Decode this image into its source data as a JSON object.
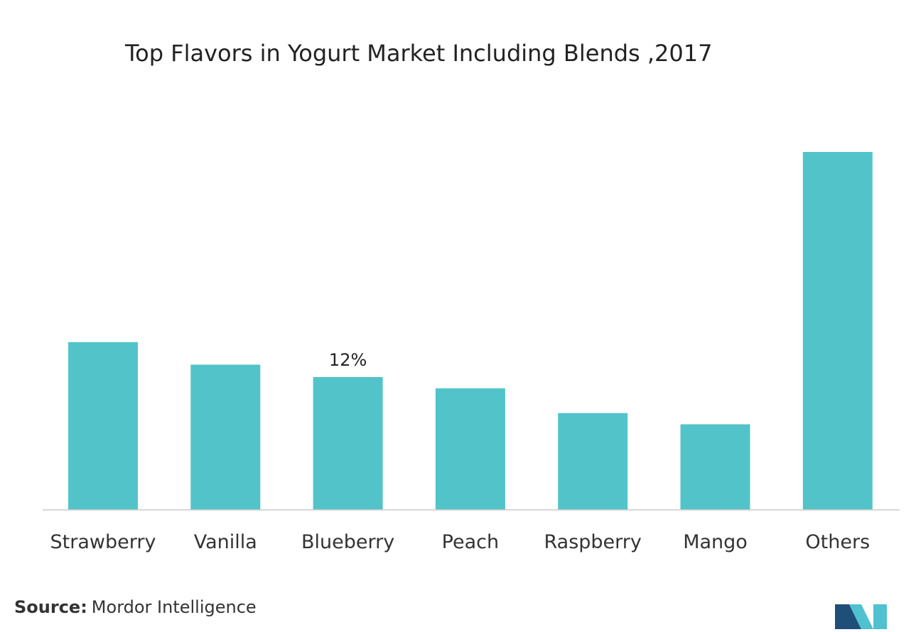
{
  "chart_data": {
    "type": "bar",
    "title": "Top Flavors in Yogurt Market Including Blends ,2017",
    "xlabel": "",
    "ylabel": "",
    "categories": [
      "Strawberry",
      "Vanilla",
      "Blueberry",
      "Peach",
      "Raspberry",
      "Mango",
      "Others"
    ],
    "values": [
      14.9,
      12.9,
      11.8,
      10.8,
      8.6,
      7.6,
      31.8
    ],
    "data_labels": [
      "",
      "",
      "12%",
      "",
      "",
      "",
      ""
    ],
    "ylim": [
      0,
      40
    ],
    "grid": false,
    "legend": "none"
  },
  "colors": {
    "bar": "#52c4c9",
    "axis": "#cccccc",
    "logo_dark": "#1f4e79",
    "logo_light": "#4fc1d0"
  },
  "source": {
    "label": "Source:",
    "text": "Mordor Intelligence"
  },
  "logo": {
    "icon": "mordor-intelligence-logo-icon"
  }
}
